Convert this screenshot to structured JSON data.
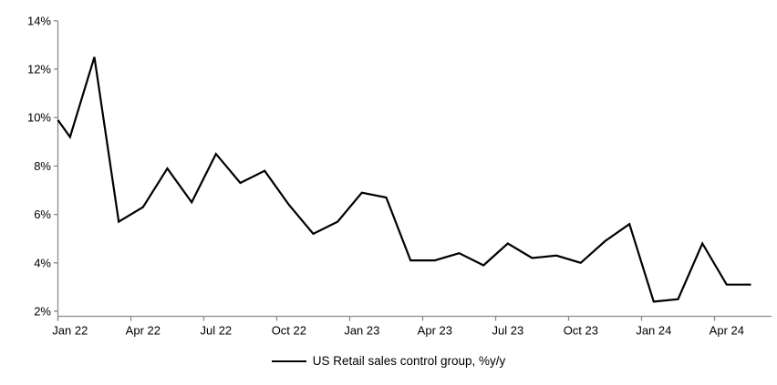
{
  "chart_data": {
    "type": "line",
    "title": "",
    "xlabel": "",
    "ylabel": "",
    "grid": false,
    "legend_position": "bottom-center",
    "background_color": "#ffffff",
    "axis_color": "#8a8a8a",
    "text_color": "#000000",
    "ylim": [
      2,
      14
    ],
    "y_tick_step": 2,
    "y_tick_labels": [
      "2%",
      "4%",
      "6%",
      "8%",
      "10%",
      "12%",
      "14%"
    ],
    "x_tick_labels": [
      "Jan 22",
      "Apr 22",
      "Jul 22",
      "Oct 22",
      "Jan 23",
      "Apr 23",
      "Jul 23",
      "Oct 23",
      "Jan 24",
      "Apr 24"
    ],
    "categories": [
      "Jan 22",
      "Feb 22",
      "Mar 22",
      "Apr 22",
      "May 22",
      "Jun 22",
      "Jul 22",
      "Aug 22",
      "Sep 22",
      "Oct 22",
      "Nov 22",
      "Dec 22",
      "Jan 23",
      "Feb 23",
      "Mar 23",
      "Apr 23",
      "May 23",
      "Jun 23",
      "Jul 23",
      "Aug 23",
      "Sep 23",
      "Oct 23",
      "Nov 23",
      "Dec 23",
      "Jan 24",
      "Feb 24",
      "Mar 24",
      "Apr 24",
      "May 24"
    ],
    "series": [
      {
        "name": "US Retail sales control group, %y/y",
        "color": "#000000",
        "left_edge_entry_value": 9.9,
        "values": [
          9.2,
          12.5,
          5.7,
          6.3,
          7.9,
          6.5,
          8.5,
          7.3,
          7.8,
          6.4,
          5.2,
          5.7,
          6.9,
          6.7,
          4.1,
          4.1,
          4.4,
          3.9,
          4.8,
          4.2,
          4.3,
          4.0,
          4.9,
          5.6,
          2.4,
          2.5,
          4.8,
          3.1,
          3.1
        ]
      }
    ]
  }
}
